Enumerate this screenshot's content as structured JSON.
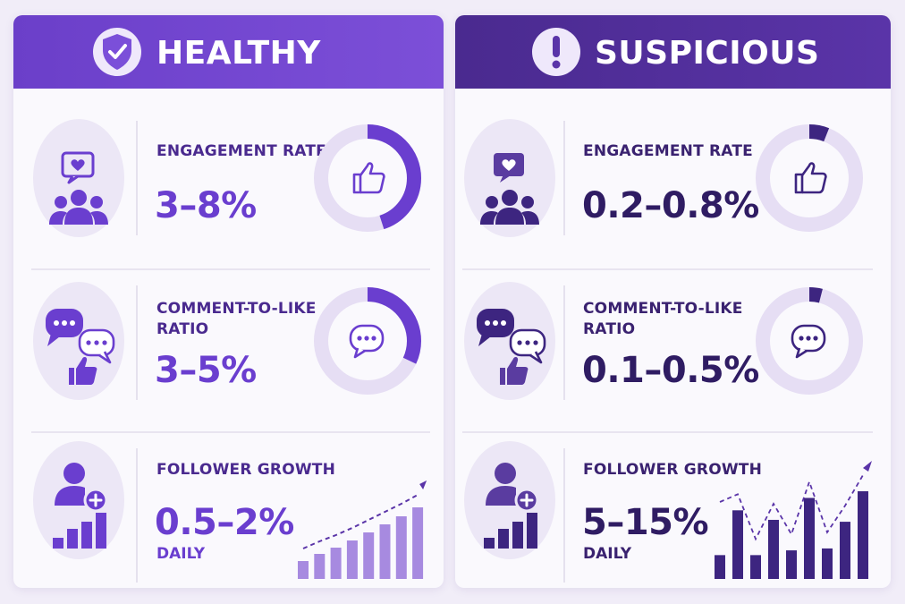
{
  "healthy": {
    "title": "HEALTHY",
    "header_icon": "shield-check-icon",
    "accent": "#6a3ecf",
    "metrics": [
      {
        "label_lines": [
          "ENGAGEMENT RATE"
        ],
        "value": "3–8%",
        "icon": "audience-heart-icon",
        "donut_icon": "thumbs-up-icon",
        "donut_fraction": 0.45
      },
      {
        "label_lines": [
          "COMMENT-TO-LIKE",
          "RATIO"
        ],
        "value": "3–5%",
        "icon": "comments-like-icon",
        "donut_icon": "comment-icon",
        "donut_fraction": 0.32
      },
      {
        "label_lines": [
          "FOLLOWER GROWTH"
        ],
        "value": "0.5–2%",
        "sub": "DAILY",
        "icon": "add-user-bars-icon",
        "chart_icon": "steady-growth-chart",
        "bars": [
          2,
          2.8,
          3.5,
          4.3,
          5.2,
          6.1,
          7.0,
          8.0
        ]
      }
    ]
  },
  "suspicious": {
    "title": "SUSPICIOUS",
    "header_icon": "exclamation-icon",
    "accent": "#2f1c63",
    "metrics": [
      {
        "label_lines": [
          "ENGAGEMENT RATE"
        ],
        "value": "0.2–0.8%",
        "icon": "audience-heart-icon",
        "donut_icon": "thumbs-up-icon",
        "donut_fraction": 0.06
      },
      {
        "label_lines": [
          "COMMENT-TO-LIKE",
          "RATIO"
        ],
        "value": "0.1–0.5%",
        "icon": "comments-like-icon",
        "donut_icon": "comment-icon",
        "donut_fraction": 0.04
      },
      {
        "label_lines": [
          "FOLLOWER GROWTH"
        ],
        "value": "5–15%",
        "sub": "DAILY",
        "icon": "add-user-bars-icon",
        "chart_icon": "erratic-growth-chart",
        "bars": [
          2.5,
          7.2,
          2.5,
          6.2,
          3.0,
          8.5,
          3.2,
          6.0,
          9.2
        ]
      }
    ]
  }
}
